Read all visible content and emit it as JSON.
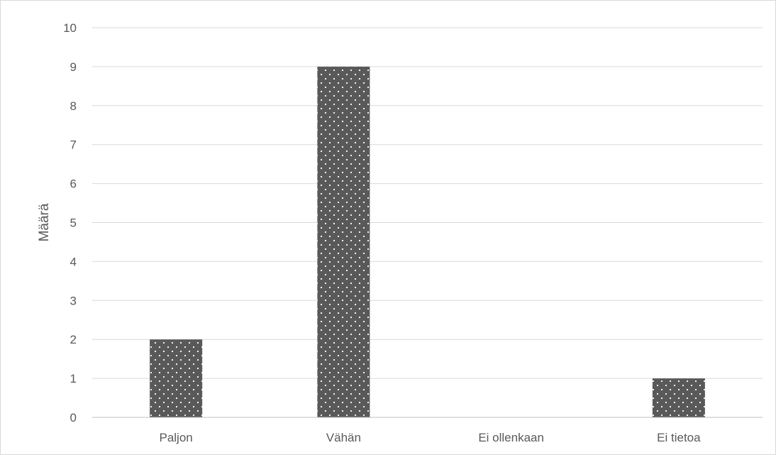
{
  "chart_data": {
    "type": "bar",
    "title": "",
    "xlabel": "",
    "ylabel": "Määrä",
    "categories": [
      "Paljon",
      "Vähän",
      "Ei ollenkaan",
      "Ei tietoa"
    ],
    "values": [
      2,
      9,
      0,
      1
    ],
    "ylim": [
      0,
      10
    ],
    "yticks": [
      "0",
      "1",
      "2",
      "3",
      "4",
      "5",
      "6",
      "7",
      "8",
      "9",
      "10"
    ],
    "grid": true,
    "legend": "none",
    "colors": {
      "bar_fill": "#595959",
      "bar_dots": "#ffffff",
      "gridline": "#d9d9d9",
      "axis_line": "#bfbfbf",
      "text": "#595959"
    }
  }
}
